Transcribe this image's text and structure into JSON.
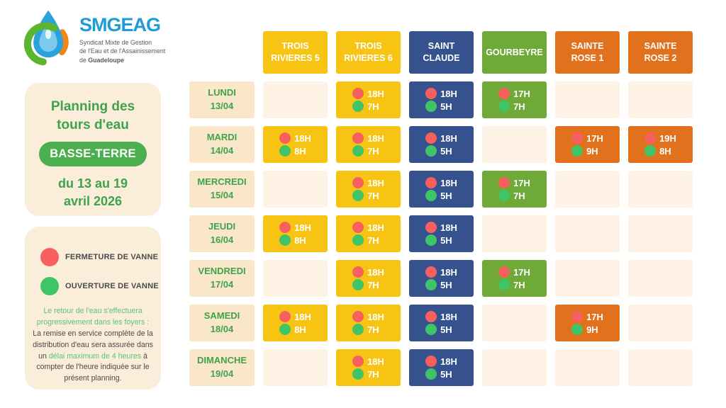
{
  "colors": {
    "brand_blue": "#1E9CD7",
    "green_text": "#3EA34C",
    "badge_green": "#4BAE4F",
    "note_green": "#5BC474",
    "dark_text": "#4A4A4A",
    "cream_card": "#FAEDDA",
    "cream_day": "#FAE7C9",
    "cream_empty": "#FDF2E3",
    "yellow": "#F7C414",
    "blue": "#35528F",
    "green": "#6FA938",
    "orange": "#E2711D",
    "red_dot": "#F85F5F",
    "green_dot": "#3FC568"
  },
  "logo": {
    "name": "SMGEAG",
    "subtitle_line1": "Syndicat Mixte de Gestion",
    "subtitle_line2": "de l'Eau et de l'Assainissement",
    "subtitle_line3_normal": "de ",
    "subtitle_line3_bold": "Guadeloupe"
  },
  "sidebar": {
    "title_line1": "Planning des",
    "title_line2": "tours d'eau",
    "badge": "BASSE-TERRE",
    "date_line1": "du 13 au 19",
    "date_line2": "avril 2026"
  },
  "legend": {
    "close_label": "FERMETURE DE VANNE",
    "open_label": "OUVERTURE DE VANNE",
    "note_green1": "Le retour de l'eau s'effectuera progressivement dans les foyers :",
    "note_dark1": "La remise en service complète de la distribution d'eau sera assurée dans un ",
    "note_green2": "délai maximum de 4 heures",
    "note_dark2": " à compter de l'heure indiquée sur le présent planning."
  },
  "schedule": {
    "columns": [
      {
        "id": "trois-rivieres-5",
        "label": "TROIS RIVIERES 5",
        "color_key": "yellow"
      },
      {
        "id": "trois-rivieres-6",
        "label": "TROIS RIVIERES 6",
        "color_key": "yellow"
      },
      {
        "id": "saint-claude",
        "label": "SAINT CLAUDE",
        "color_key": "blue"
      },
      {
        "id": "gourbeyre",
        "label": "GOURBEYRE",
        "color_key": "green"
      },
      {
        "id": "sainte-rose-1",
        "label": "SAINTE ROSE 1",
        "color_key": "orange"
      },
      {
        "id": "sainte-rose-2",
        "label": "SAINTE ROSE 2",
        "color_key": "orange"
      }
    ],
    "rows": [
      {
        "day": "LUNDI",
        "date": "13/04",
        "cells": [
          null,
          {
            "close": "18H",
            "open": "7H"
          },
          {
            "close": "18H",
            "open": "5H"
          },
          {
            "close": "17H",
            "open": "7H"
          },
          null,
          null
        ]
      },
      {
        "day": "MARDI",
        "date": "14/04",
        "cells": [
          {
            "close": "18H",
            "open": "8H"
          },
          {
            "close": "18H",
            "open": "7H"
          },
          {
            "close": "18H",
            "open": "5H"
          },
          null,
          {
            "close": "17H",
            "open": "9H"
          },
          {
            "close": "19H",
            "open": "8H"
          }
        ]
      },
      {
        "day": "MERCREDI",
        "date": "15/04",
        "cells": [
          null,
          {
            "close": "18H",
            "open": "7H"
          },
          {
            "close": "18H",
            "open": "5H"
          },
          {
            "close": "17H",
            "open": "7H"
          },
          null,
          null
        ]
      },
      {
        "day": "JEUDI",
        "date": "16/04",
        "cells": [
          {
            "close": "18H",
            "open": "8H"
          },
          {
            "close": "18H",
            "open": "7H"
          },
          {
            "close": "18H",
            "open": "5H"
          },
          null,
          null,
          null
        ]
      },
      {
        "day": "VENDREDI",
        "date": "17/04",
        "cells": [
          null,
          {
            "close": "18H",
            "open": "7H"
          },
          {
            "close": "18H",
            "open": "5H"
          },
          {
            "close": "17H",
            "open": "7H"
          },
          null,
          null
        ]
      },
      {
        "day": "SAMEDI",
        "date": "18/04",
        "cells": [
          {
            "close": "18H",
            "open": "8H"
          },
          {
            "close": "18H",
            "open": "7H"
          },
          {
            "close": "18H",
            "open": "5H"
          },
          null,
          {
            "close": "17H",
            "open": "9H"
          },
          null
        ]
      },
      {
        "day": "DIMANCHE",
        "date": "19/04",
        "cells": [
          null,
          {
            "close": "18H",
            "open": "7H"
          },
          {
            "close": "18H",
            "open": "5H"
          },
          null,
          null,
          null
        ]
      }
    ]
  }
}
